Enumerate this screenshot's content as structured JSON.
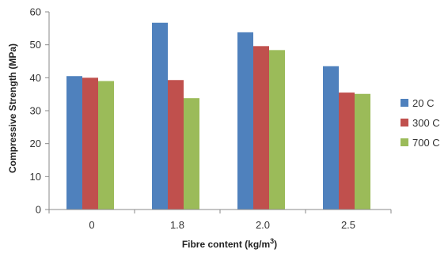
{
  "chart_data": {
    "type": "bar",
    "title": "",
    "xlabel": "Fibre content (kg/m³)",
    "xlabel_main": "Fibre content (kg/m",
    "xlabel_sup": "3",
    "xlabel_end": ")",
    "ylabel": "Compressive Strength (MPa)",
    "ylim": [
      0,
      60
    ],
    "yticks": [
      0,
      10,
      20,
      30,
      40,
      50,
      60
    ],
    "categories": [
      "0",
      "1.8",
      "2.0",
      "2.5"
    ],
    "series": [
      {
        "name": "20 C",
        "color": "#4F81BD",
        "values": [
          40.5,
          56.7,
          53.8,
          43.5
        ]
      },
      {
        "name": "300 C",
        "color": "#C0504D",
        "values": [
          40.0,
          39.3,
          49.6,
          35.5
        ]
      },
      {
        "name": "700 C",
        "color": "#9BBB59",
        "values": [
          39.0,
          33.8,
          48.4,
          35.1
        ]
      }
    ],
    "grid": false,
    "legend_position": "right"
  }
}
